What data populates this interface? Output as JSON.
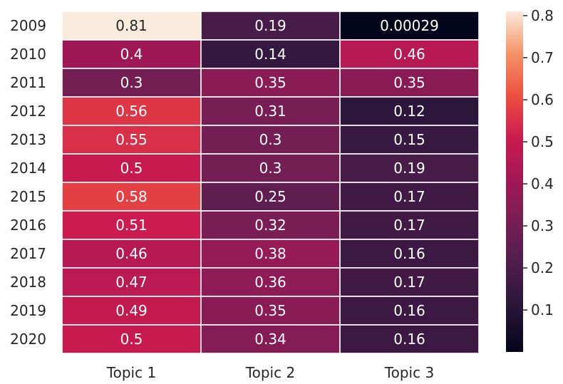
{
  "chart_data": {
    "type": "heatmap",
    "title": "",
    "xlabel": "",
    "ylabel": "",
    "x_categories": [
      "Topic 1",
      "Topic 2",
      "Topic 3"
    ],
    "y_categories": [
      "2009",
      "2010",
      "2011",
      "2012",
      "2013",
      "2014",
      "2015",
      "2016",
      "2017",
      "2018",
      "2019",
      "2020"
    ],
    "values": [
      [
        0.81,
        0.19,
        0.00029
      ],
      [
        0.4,
        0.14,
        0.46
      ],
      [
        0.3,
        0.35,
        0.35
      ],
      [
        0.56,
        0.31,
        0.12
      ],
      [
        0.55,
        0.3,
        0.15
      ],
      [
        0.5,
        0.3,
        0.19
      ],
      [
        0.58,
        0.25,
        0.17
      ],
      [
        0.51,
        0.32,
        0.17
      ],
      [
        0.46,
        0.38,
        0.16
      ],
      [
        0.47,
        0.36,
        0.17
      ],
      [
        0.49,
        0.35,
        0.16
      ],
      [
        0.5,
        0.34,
        0.16
      ]
    ],
    "annotations": [
      [
        "0.81",
        "0.19",
        "0.00029"
      ],
      [
        "0.4",
        "0.14",
        "0.46"
      ],
      [
        "0.3",
        "0.35",
        "0.35"
      ],
      [
        "0.56",
        "0.31",
        "0.12"
      ],
      [
        "0.55",
        "0.3",
        "0.15"
      ],
      [
        "0.5",
        "0.3",
        "0.19"
      ],
      [
        "0.58",
        "0.25",
        "0.17"
      ],
      [
        "0.51",
        "0.32",
        "0.17"
      ],
      [
        "0.46",
        "0.38",
        "0.16"
      ],
      [
        "0.47",
        "0.36",
        "0.17"
      ],
      [
        "0.49",
        "0.35",
        "0.16"
      ],
      [
        "0.5",
        "0.34",
        "0.16"
      ]
    ],
    "colorbar": {
      "ticks": [
        "0.1",
        "0.2",
        "0.3",
        "0.4",
        "0.5",
        "0.6",
        "0.7",
        "0.8"
      ],
      "range": [
        0.00029,
        0.81
      ]
    },
    "colormap": "rocket",
    "cell_border_color": "#ffffff"
  }
}
